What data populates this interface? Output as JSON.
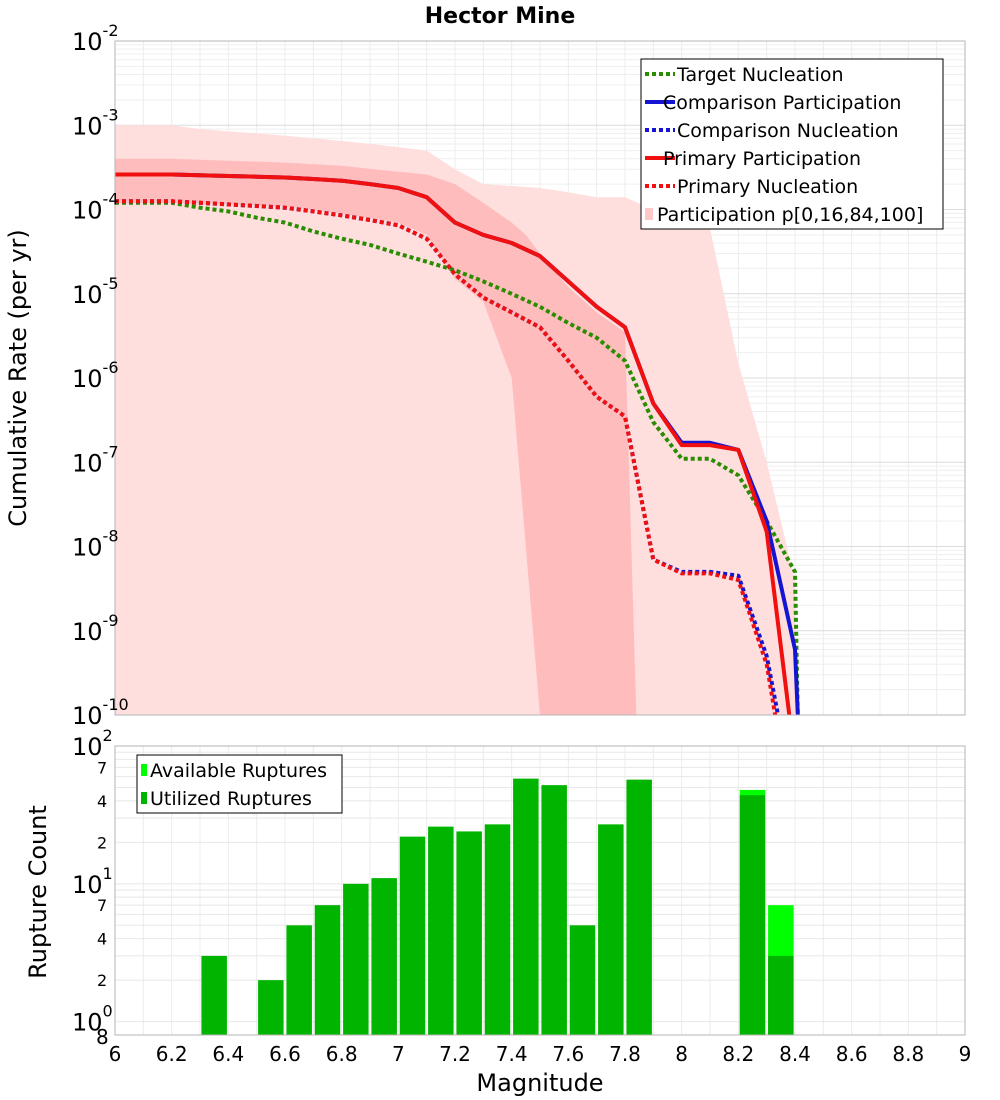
{
  "chart_data": {
    "title": "Hector Mine",
    "top_panel": {
      "type": "line",
      "ylabel": "Cumulative Rate (per yr)",
      "yscale": "log",
      "ylim": [
        1e-10,
        0.01
      ],
      "xlim": [
        6,
        9
      ],
      "y_ticks": [
        {
          "base": "10",
          "exp": "-2",
          "value": 0.01
        },
        {
          "base": "10",
          "exp": "-3",
          "value": 0.001
        },
        {
          "base": "10",
          "exp": "-4",
          "value": 0.0001
        },
        {
          "base": "10",
          "exp": "-5",
          "value": 1e-05
        },
        {
          "base": "10",
          "exp": "-6",
          "value": 1e-06
        },
        {
          "base": "10",
          "exp": "-7",
          "value": 1e-07
        },
        {
          "base": "10",
          "exp": "-8",
          "value": 1e-08
        },
        {
          "base": "10",
          "exp": "-9",
          "value": 1e-09
        },
        {
          "base": "10",
          "exp": "-10",
          "value": 1e-10
        }
      ],
      "bands": [
        {
          "name": "Participation p[0,100]",
          "color": "#ffdede",
          "x": [
            6,
            6.1,
            6.2,
            6.3,
            6.4,
            6.5,
            6.6,
            6.7,
            6.8,
            6.9,
            7.0,
            7.1,
            7.2,
            7.3,
            7.4,
            7.5,
            7.6,
            7.7,
            7.8,
            7.9,
            8.0,
            8.1,
            8.2,
            8.3,
            8.4
          ],
          "upper": [
            0.001,
            0.001,
            0.001,
            0.0009,
            0.00085,
            0.0008,
            0.00075,
            0.0007,
            0.00065,
            0.0006,
            0.00055,
            0.0005,
            0.0003,
            0.0002,
            0.00019,
            0.00018,
            0.00016,
            0.00014,
            0.00014,
            0.0001,
            9e-05,
            6e-05,
            1.5e-06,
            1e-07,
            4e-09
          ],
          "lower": [
            1e-10,
            1e-10,
            1e-10,
            1e-10,
            1e-10,
            1e-10,
            1e-10,
            1e-10,
            1e-10,
            1e-10,
            1e-10,
            1e-10,
            1e-10,
            1e-10,
            1e-10,
            1e-10,
            1e-10,
            1e-10,
            1e-10,
            1e-10,
            1e-10,
            1e-10,
            1e-10,
            1e-10,
            1e-10
          ]
        },
        {
          "name": "Participation p[16,84]",
          "color": "#ffbcbc",
          "x": [
            6,
            6.2,
            6.4,
            6.6,
            6.8,
            7.0,
            7.1,
            7.2,
            7.3,
            7.4,
            7.45,
            7.5,
            7.6,
            7.7,
            7.8,
            7.84
          ],
          "upper": [
            0.0004,
            0.0004,
            0.00038,
            0.00036,
            0.00033,
            0.00028,
            0.00026,
            0.0002,
            0.00012,
            7e-05,
            5e-05,
            3e-05,
            1.2e-05,
            6e-06,
            3.5e-06,
            1e-10
          ],
          "lower": [
            0.00012,
            0.00012,
            0.000115,
            0.00011,
            9e-05,
            7e-05,
            5e-05,
            1.5e-05,
            8e-06,
            1e-06,
            1e-08,
            1e-10,
            1e-10,
            1e-10,
            1e-10,
            1e-10
          ]
        }
      ],
      "series": [
        {
          "name": "Target Nucleation",
          "color": "#2a8c00",
          "style": "dotted",
          "x": [
            6,
            6.1,
            6.2,
            6.3,
            6.4,
            6.5,
            6.6,
            6.7,
            6.8,
            6.9,
            7.0,
            7.1,
            7.2,
            7.3,
            7.4,
            7.5,
            7.6,
            7.7,
            7.8,
            7.9,
            8.0,
            8.1,
            8.2,
            8.3,
            8.4,
            8.41
          ],
          "y": [
            0.00012,
            0.00012,
            0.00012,
            0.000105,
            9.5e-05,
            8e-05,
            7e-05,
            5.5e-05,
            4.5e-05,
            3.8e-05,
            3e-05,
            2.4e-05,
            1.9e-05,
            1.4e-05,
            1e-05,
            7e-06,
            4.5e-06,
            3e-06,
            1.6e-06,
            3e-07,
            1.1e-07,
            1.1e-07,
            7e-08,
            2e-08,
            5e-09,
            1e-10
          ]
        },
        {
          "name": "Comparison Participation",
          "color": "#1414d2",
          "style": "solid",
          "x": [
            6,
            6.1,
            6.2,
            6.3,
            6.4,
            6.5,
            6.6,
            6.7,
            6.8,
            6.9,
            7.0,
            7.1,
            7.2,
            7.3,
            7.4,
            7.5,
            7.6,
            7.7,
            7.8,
            7.9,
            8.0,
            8.1,
            8.2,
            8.3,
            8.4,
            8.41
          ],
          "y": [
            0.00026,
            0.00026,
            0.00026,
            0.000255,
            0.00025,
            0.000245,
            0.00024,
            0.00023,
            0.00022,
            0.0002,
            0.00018,
            0.00014,
            7e-05,
            5e-05,
            4e-05,
            2.8e-05,
            1.4e-05,
            7e-06,
            4e-06,
            5e-07,
            1.7e-07,
            1.7e-07,
            1.4e-07,
            2e-08,
            6e-10,
            1e-10
          ]
        },
        {
          "name": "Comparison Nucleation",
          "color": "#1414d2",
          "style": "dotted",
          "x": [
            6,
            6.1,
            6.2,
            6.3,
            6.4,
            6.5,
            6.6,
            6.7,
            6.8,
            6.9,
            7.0,
            7.1,
            7.2,
            7.3,
            7.4,
            7.5,
            7.6,
            7.7,
            7.8,
            7.9,
            8.0,
            8.1,
            8.2,
            8.3,
            8.34
          ],
          "y": [
            0.000125,
            0.000125,
            0.000125,
            0.00012,
            0.000115,
            0.00011,
            0.000105,
            9.5e-05,
            8.5e-05,
            7.5e-05,
            6.5e-05,
            4.5e-05,
            1.7e-05,
            9e-06,
            6e-06,
            4e-06,
            1.6e-06,
            6e-07,
            3.5e-07,
            7e-09,
            5e-09,
            5e-09,
            4.5e-09,
            5e-10,
            1e-10
          ]
        },
        {
          "name": "Primary Participation",
          "color": "#f01010",
          "style": "solid",
          "x": [
            6,
            6.1,
            6.2,
            6.3,
            6.4,
            6.5,
            6.6,
            6.7,
            6.8,
            6.9,
            7.0,
            7.1,
            7.2,
            7.3,
            7.4,
            7.5,
            7.6,
            7.7,
            7.8,
            7.9,
            8.0,
            8.1,
            8.2,
            8.3,
            8.38
          ],
          "y": [
            0.00026,
            0.00026,
            0.00026,
            0.000255,
            0.00025,
            0.000245,
            0.00024,
            0.00023,
            0.00022,
            0.0002,
            0.00018,
            0.00014,
            7e-05,
            5e-05,
            4e-05,
            2.8e-05,
            1.4e-05,
            7e-06,
            4e-06,
            5e-07,
            1.6e-07,
            1.6e-07,
            1.4e-07,
            1.5e-08,
            1e-10
          ]
        },
        {
          "name": "Primary Nucleation",
          "color": "#f01010",
          "style": "dotted",
          "x": [
            6,
            6.1,
            6.2,
            6.3,
            6.4,
            6.5,
            6.6,
            6.7,
            6.8,
            6.9,
            7.0,
            7.1,
            7.2,
            7.3,
            7.4,
            7.5,
            7.6,
            7.7,
            7.8,
            7.9,
            8.0,
            8.1,
            8.2,
            8.3,
            8.33
          ],
          "y": [
            0.000125,
            0.000125,
            0.000125,
            0.00012,
            0.000115,
            0.00011,
            0.000105,
            9.5e-05,
            8.5e-05,
            7.5e-05,
            6.5e-05,
            4.5e-05,
            1.7e-05,
            9e-06,
            6e-06,
            4e-06,
            1.6e-06,
            6e-07,
            3.5e-07,
            7e-09,
            4.8e-09,
            4.8e-09,
            4e-09,
            4e-10,
            1e-10
          ]
        }
      ],
      "legend": {
        "position": "top-right",
        "entries": [
          {
            "label": "Target Nucleation",
            "color": "#2a8c00",
            "style": "dotted"
          },
          {
            "label": "Comparison Participation",
            "color": "#1414d2",
            "style": "solid"
          },
          {
            "label": "Comparison Nucleation",
            "color": "#1414d2",
            "style": "dotted"
          },
          {
            "label": "Primary Participation",
            "color": "#f01010",
            "style": "solid"
          },
          {
            "label": "Primary Nucleation",
            "color": "#f01010",
            "style": "dotted"
          },
          {
            "label": "Participation p[0,16,84,100]",
            "color": "#ffc8c8",
            "style": "patch"
          }
        ]
      }
    },
    "bottom_panel": {
      "type": "bar",
      "ylabel": "Rupture Count",
      "xlabel": "Magnitude",
      "yscale": "log",
      "ylim": [
        0.8,
        100
      ],
      "xlim": [
        6,
        9
      ],
      "x_ticks": [
        "6",
        "6.2",
        "6.4",
        "6.6",
        "6.8",
        "7",
        "7.2",
        "7.4",
        "7.6",
        "7.8",
        "8",
        "8.2",
        "8.4",
        "8.6",
        "8.8",
        "9"
      ],
      "y_major_ticks": [
        {
          "base": "10",
          "exp": "2",
          "value": 100
        },
        {
          "base": "10",
          "exp": "1",
          "value": 10
        },
        {
          "base": "10",
          "exp": "0",
          "value": 1
        }
      ],
      "y_minor_ticks": [
        {
          "label": "7",
          "value": 70
        },
        {
          "label": "4",
          "value": 40
        },
        {
          "label": "2",
          "value": 20
        },
        {
          "label": "7",
          "value": 7
        },
        {
          "label": "4",
          "value": 4
        },
        {
          "label": "2",
          "value": 2
        },
        {
          "label": "8",
          "value": 0.8
        }
      ],
      "bar_width": 0.09,
      "series": [
        {
          "name": "Available Ruptures",
          "color": "#00ff00",
          "x": [
            8.25,
            8.35
          ],
          "values": [
            48,
            7
          ]
        },
        {
          "name": "Utilized Ruptures",
          "color": "#00b400",
          "x": [
            6.35,
            6.55,
            6.65,
            6.75,
            6.85,
            6.95,
            7.05,
            7.15,
            7.25,
            7.35,
            7.45,
            7.55,
            7.65,
            7.75,
            7.85,
            8.25,
            8.35
          ],
          "values": [
            3,
            2,
            5,
            7,
            10,
            11,
            22,
            26,
            24,
            27,
            58,
            52,
            5,
            27,
            57,
            44,
            3
          ]
        }
      ],
      "legend": {
        "position": "top-left",
        "entries": [
          {
            "label": "Available Ruptures",
            "color": "#00ff00"
          },
          {
            "label": "Utilized Ruptures",
            "color": "#00b400"
          }
        ]
      }
    }
  }
}
